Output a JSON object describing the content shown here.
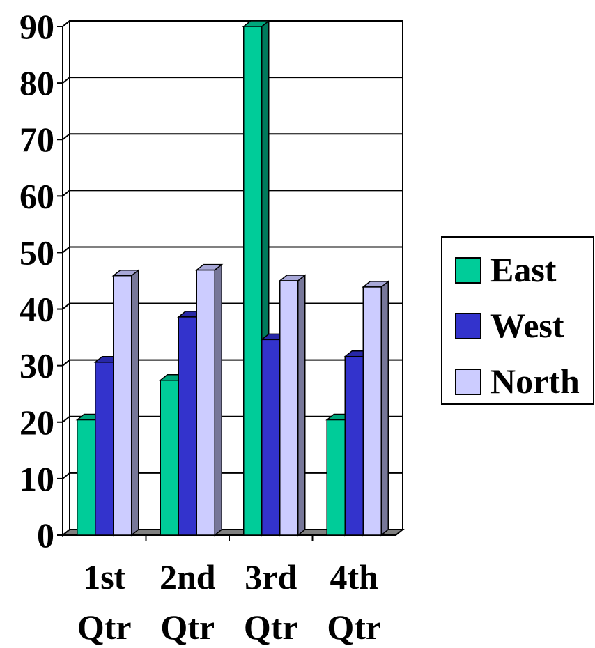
{
  "chart_data": {
    "type": "bar",
    "style": "3d-clustered-column",
    "categories": [
      [
        "1st",
        "Qtr"
      ],
      [
        "2nd",
        "Qtr"
      ],
      [
        "3rd",
        "Qtr"
      ],
      [
        "4th",
        "Qtr"
      ]
    ],
    "series": [
      {
        "name": "East",
        "values": [
          20.4,
          27.4,
          90,
          20.4
        ],
        "color": "#00cc99",
        "side_color": "#007a5c",
        "top_color": "#00a67c"
      },
      {
        "name": "West",
        "values": [
          30.6,
          38.6,
          34.6,
          31.6
        ],
        "color": "#3333cc",
        "side_color": "#1a1a7a",
        "top_color": "#2828a8"
      },
      {
        "name": "North",
        "values": [
          45.9,
          46.9,
          45,
          43.9
        ],
        "color": "#ccccff",
        "side_color": "#777799",
        "top_color": "#a8a8d8"
      }
    ],
    "y_ticks": [
      "0",
      "10",
      "20",
      "30",
      "40",
      "50",
      "60",
      "70",
      "80",
      "90"
    ],
    "ylim": [
      0,
      90
    ],
    "grid": true,
    "legend_position": "right",
    "title": "",
    "xlabel": "",
    "ylabel": ""
  }
}
